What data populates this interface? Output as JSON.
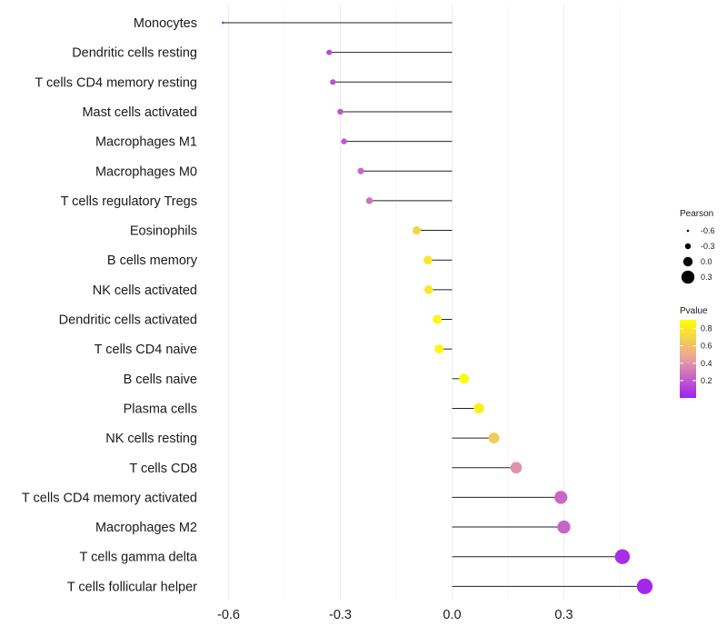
{
  "chart_data": {
    "type": "lollipop",
    "title": "",
    "xlabel": "",
    "ylabel": "",
    "xlim": [
      -0.62,
      0.52
    ],
    "x_ticks": [
      -0.6,
      -0.3,
      0.0,
      0.3
    ],
    "x_tick_labels": [
      "-0.6",
      "-0.3",
      "0.0",
      "0.3"
    ],
    "grid": true,
    "categories": [
      "Monocytes",
      "Dendritic cells resting",
      "T cells CD4 memory resting",
      "Mast cells activated",
      "Macrophages M1",
      "Macrophages M0",
      "T cells regulatory  Tregs ",
      "Eosinophils",
      "B cells memory",
      "NK cells activated",
      "Dendritic cells activated",
      "T cells CD4 naive",
      "B cells naive",
      "Plasma cells",
      "NK cells resting",
      "T cells CD8",
      "T cells CD4 memory activated",
      "Macrophages M2",
      "T cells gamma delta",
      "T cells follicular helper"
    ],
    "values": [
      -0.615,
      -0.33,
      -0.32,
      -0.3,
      -0.29,
      -0.245,
      -0.222,
      -0.095,
      -0.065,
      -0.063,
      -0.04,
      -0.035,
      0.032,
      0.072,
      0.112,
      0.172,
      0.292,
      0.3,
      0.457,
      0.517
    ],
    "pvalues": [
      0.01,
      0.15,
      0.16,
      0.18,
      0.19,
      0.25,
      0.3,
      0.7,
      0.78,
      0.79,
      0.85,
      0.86,
      0.88,
      0.82,
      0.65,
      0.4,
      0.25,
      0.24,
      0.05,
      0.02
    ],
    "legend": {
      "placement": "right",
      "size_title": "Pearson",
      "size_labels": [
        "-0.6",
        "-0.3",
        "0.0",
        "0.3"
      ],
      "size_values": [
        -0.6,
        -0.3,
        0.0,
        0.3
      ],
      "color_title": "Pvalue",
      "color_labels": [
        "0.8",
        "0.6",
        "0.4",
        "0.2"
      ],
      "color_values": [
        0.8,
        0.6,
        0.4,
        0.2
      ],
      "color_range": [
        0.0,
        0.9
      ],
      "color_low": "#A020F0",
      "color_mid": "#E9A0A0",
      "color_high": "#FFFF00"
    }
  }
}
